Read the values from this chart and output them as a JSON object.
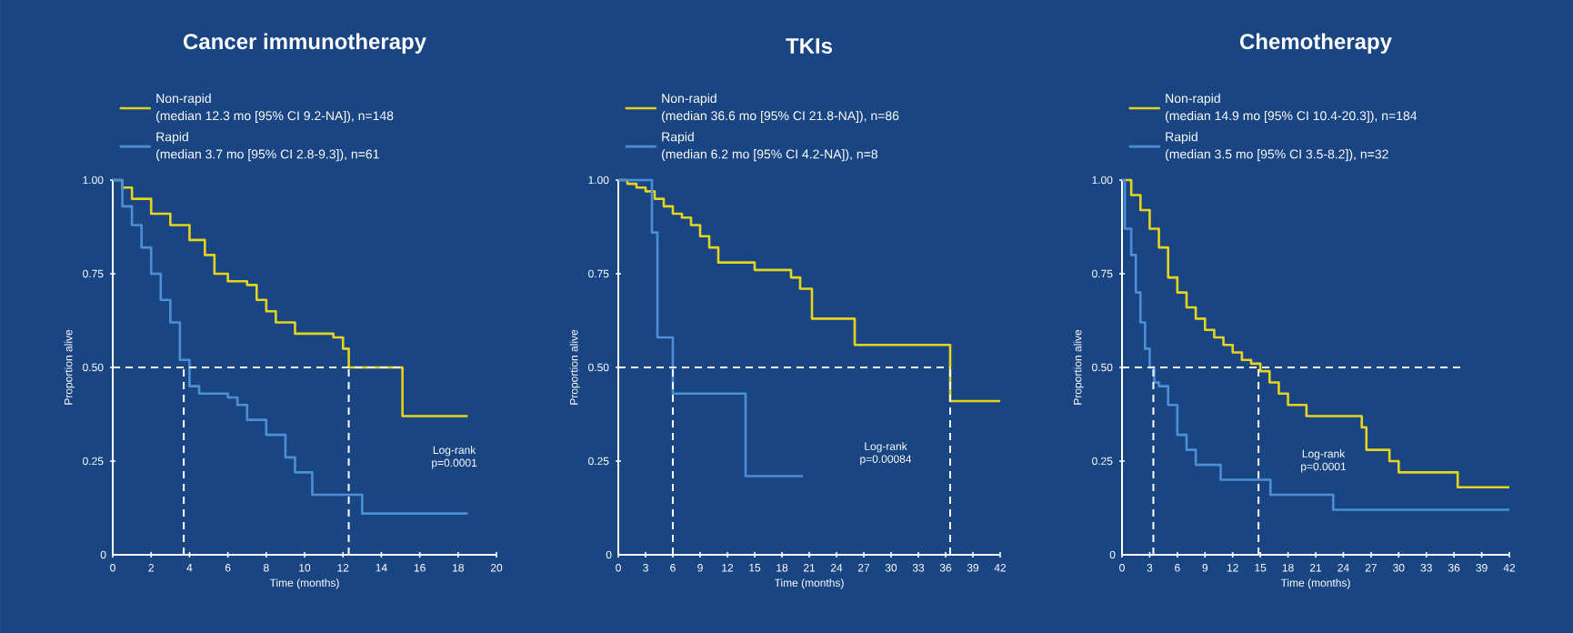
{
  "chart_data": [
    {
      "type": "step",
      "title": "Cancer immunotherapy",
      "xlabel": "Time (months)",
      "ylabel": "Proportion alive",
      "xlim": [
        0,
        20
      ],
      "xticks": [
        0,
        2,
        4,
        6,
        8,
        10,
        12,
        14,
        16,
        18,
        20
      ],
      "ylim": [
        0,
        1
      ],
      "yticks": [
        0,
        {
          "value": 0.25,
          "label": "0.25"
        },
        {
          "value": 0.5,
          "label": "0.50"
        },
        {
          "value": 0.75,
          "label": "0.75"
        },
        {
          "value": 1,
          "label": "1.00"
        }
      ],
      "legend": "top",
      "marker": "none",
      "grid": false,
      "annotations": [
        "(median 12.3 mo [95% CI 9.2-NA]), n=148",
        "(median 3.7 mo [95% CI 2.8-9.3]), n=61",
        "Log-rank p=0.0001"
      ],
      "series": [
        {
          "name": "Non-rapid",
          "color": "#e6d31e",
          "x": [
            0,
            0.5,
            1,
            2,
            3,
            4,
            4.8,
            5.3,
            6,
            7,
            7.5,
            8,
            8.5,
            9.5,
            11.5,
            12,
            12.3,
            15.1,
            18.5
          ],
          "values": [
            1,
            0.98,
            0.95,
            0.91,
            0.88,
            0.84,
            0.8,
            0.75,
            0.73,
            0.72,
            0.68,
            0.65,
            0.62,
            0.59,
            0.58,
            0.55,
            0.5,
            0.37,
            0.37
          ]
        },
        {
          "name": "Rapid",
          "color": "#4d8fd6",
          "x": [
            0,
            0.5,
            1,
            1.5,
            2,
            2.5,
            3,
            3.5,
            4,
            4.5,
            6,
            6.5,
            7,
            8,
            9,
            9.5,
            10.4,
            13,
            18.5
          ],
          "values": [
            1,
            0.93,
            0.88,
            0.82,
            0.75,
            0.68,
            0.62,
            0.52,
            0.45,
            0.43,
            0.42,
            0.4,
            0.36,
            0.32,
            0.26,
            0.22,
            0.16,
            0.11,
            0.11
          ]
        },
        {
          "type": "line",
          "line_style": "dashed",
          "color": "#ffffff",
          "x": [
            0,
            15.1
          ],
          "values": [
            0.5,
            0.5
          ]
        },
        {
          "type": "line",
          "line_style": "dashed",
          "color": "#ffffff",
          "x": [
            3.7,
            3.7
          ],
          "values": [
            0,
            0.5
          ]
        },
        {
          "type": "line",
          "line_style": "dashed",
          "color": "#ffffff",
          "x": [
            12.3,
            12.3
          ],
          "values": [
            0,
            0.5
          ]
        }
      ]
    },
    {
      "type": "step",
      "title": "TKIs",
      "xlabel": "Time (months)",
      "ylabel": "Proportion alive",
      "xlim": [
        0,
        42
      ],
      "xticks": [
        0,
        3,
        6,
        9,
        12,
        15,
        18,
        21,
        24,
        27,
        30,
        33,
        36,
        39,
        42
      ],
      "ylim": [
        0,
        1
      ],
      "yticks": [
        0,
        {
          "value": 0.25,
          "label": "0.25"
        },
        {
          "value": 0.5,
          "label": "0.50"
        },
        {
          "value": 0.75,
          "label": "0.75"
        },
        {
          "value": 1,
          "label": "1.00"
        }
      ],
      "legend": "top",
      "marker": "none",
      "grid": false,
      "annotations": [
        "(median 36.6 mo [95% CI 21.8-NA]), n=86",
        "(median 6.2 mo [95% CI 4.2-NA]), n=8",
        "Log-rank p=0.00084"
      ],
      "series": [
        {
          "name": "Non-rapid",
          "color": "#e6d31e",
          "x": [
            0,
            1,
            2,
            3,
            4,
            5,
            6,
            7,
            8,
            9,
            10,
            11,
            15,
            19,
            20,
            21.3,
            26,
            36.5,
            42
          ],
          "values": [
            1,
            0.99,
            0.98,
            0.97,
            0.95,
            0.93,
            0.91,
            0.9,
            0.88,
            0.85,
            0.82,
            0.78,
            0.76,
            0.74,
            0.71,
            0.63,
            0.56,
            0.41,
            0.41
          ]
        },
        {
          "name": "Rapid",
          "color": "#4d8fd6",
          "x": [
            0,
            3.7,
            4.3,
            6,
            14,
            20.3
          ],
          "values": [
            1,
            0.86,
            0.58,
            0.43,
            0.21,
            0.21
          ]
        },
        {
          "type": "line",
          "line_style": "dashed",
          "color": "#ffffff",
          "x": [
            0,
            36.5
          ],
          "values": [
            0.5,
            0.5
          ]
        },
        {
          "type": "line",
          "line_style": "dashed",
          "color": "#ffffff",
          "x": [
            6,
            6
          ],
          "values": [
            0,
            0.5
          ]
        },
        {
          "type": "line",
          "line_style": "dashed",
          "color": "#ffffff",
          "x": [
            36.5,
            36.5
          ],
          "values": [
            0,
            0.5
          ]
        }
      ]
    },
    {
      "type": "step",
      "title": "Chemotherapy",
      "xlabel": "Time (months)",
      "ylabel": "Proportion alive",
      "xlim": [
        0,
        42
      ],
      "xticks": [
        0,
        3,
        6,
        9,
        12,
        15,
        18,
        21,
        24,
        27,
        30,
        33,
        36,
        39,
        42
      ],
      "ylim": [
        0,
        1
      ],
      "yticks": [
        0,
        {
          "value": 0.25,
          "label": "0.25"
        },
        {
          "value": 0.5,
          "label": "0.50"
        },
        {
          "value": 0.75,
          "label": "0.75"
        },
        {
          "value": 1,
          "label": "1.00"
        }
      ],
      "legend": "top",
      "marker": "none",
      "grid": false,
      "annotations": [
        "(median 14.9 mo [95% CI 10.4-20.3]), n=184",
        "(median 3.5 mo [95% CI 3.5-8.2]), n=32",
        "Log-rank p=0.0001"
      ],
      "series": [
        {
          "name": "Non-rapid",
          "color": "#e6d31e",
          "x": [
            0,
            1,
            2,
            3,
            4,
            5,
            6,
            7,
            8,
            9,
            10,
            11,
            12,
            13,
            14,
            15,
            16,
            17,
            18,
            20,
            26,
            26.5,
            29,
            30,
            36.4,
            42
          ],
          "values": [
            1,
            0.96,
            0.92,
            0.87,
            0.82,
            0.74,
            0.7,
            0.66,
            0.63,
            0.6,
            0.58,
            0.56,
            0.54,
            0.52,
            0.51,
            0.49,
            0.46,
            0.43,
            0.4,
            0.37,
            0.34,
            0.28,
            0.25,
            0.22,
            0.18,
            0.18
          ]
        },
        {
          "name": "Rapid",
          "color": "#4d8fd6",
          "x": [
            0,
            0.3,
            1,
            1.5,
            2,
            2.5,
            3,
            3.5,
            4,
            5,
            6,
            7,
            8,
            10.7,
            16.1,
            22.9,
            42
          ],
          "values": [
            1,
            0.87,
            0.8,
            0.7,
            0.62,
            0.55,
            0.5,
            0.46,
            0.45,
            0.4,
            0.32,
            0.28,
            0.24,
            0.2,
            0.16,
            0.12,
            0.12
          ]
        },
        {
          "type": "line",
          "line_style": "dashed",
          "color": "#ffffff",
          "x": [
            0,
            36.7
          ],
          "values": [
            0.5,
            0.5
          ]
        },
        {
          "type": "line",
          "line_style": "dashed",
          "color": "#ffffff",
          "x": [
            3.4,
            3.4
          ],
          "values": [
            0,
            0.5
          ]
        },
        {
          "type": "line",
          "line_style": "dashed",
          "color": "#ffffff",
          "x": [
            14.8,
            14.8
          ],
          "values": [
            0,
            0.5
          ]
        }
      ]
    }
  ]
}
